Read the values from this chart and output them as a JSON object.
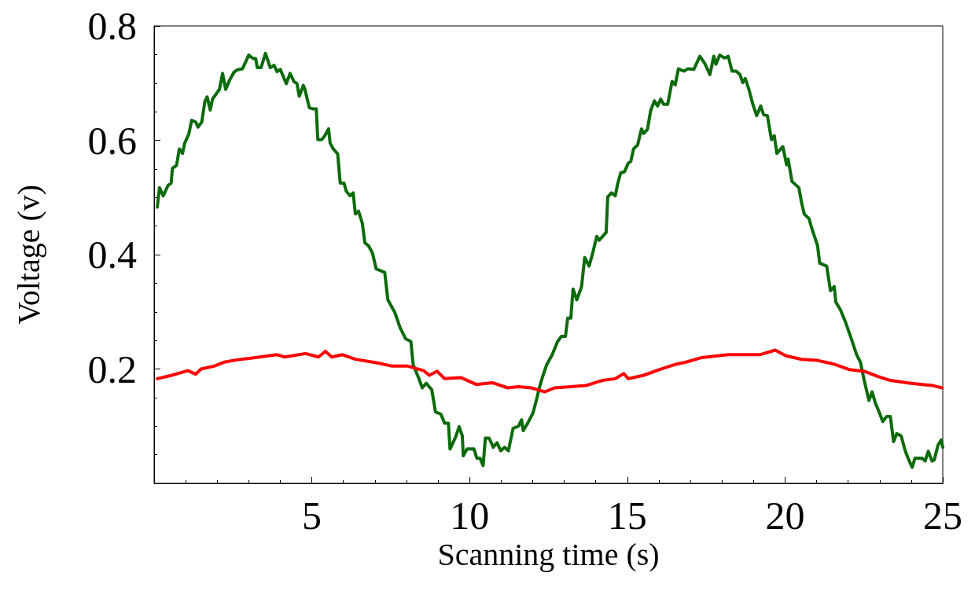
{
  "chart_data": {
    "type": "line",
    "xlabel": "Scanning time (s)",
    "ylabel": "Voltage (v)",
    "xlim": [
      0,
      25
    ],
    "xticks": [
      5,
      10,
      15,
      20,
      25
    ],
    "ylim": [
      0,
      0.8
    ],
    "yticks": [
      0.2,
      0.4,
      0.6,
      0.8
    ],
    "grid": false,
    "marker": "none",
    "line_style": "solid",
    "series": [
      {
        "color": "#0b6b0b",
        "x": [
          0.1,
          0.17,
          0.29,
          0.44,
          0.54,
          0.58,
          0.71,
          0.8,
          0.9,
          0.97,
          1.1,
          1.19,
          1.32,
          1.39,
          1.51,
          1.61,
          1.68,
          1.78,
          1.85,
          2.07,
          2.17,
          2.27,
          2.39,
          2.53,
          2.63,
          2.8,
          2.9,
          3.0,
          3.14,
          3.22,
          3.27,
          3.39,
          3.53,
          3.68,
          3.8,
          3.9,
          4.0,
          4.19,
          4.31,
          4.43,
          4.53,
          4.6,
          4.73,
          4.78,
          4.92,
          5.02,
          5.14,
          5.19,
          5.31,
          5.41,
          5.53,
          5.58,
          5.68,
          5.82,
          5.9,
          6.02,
          6.09,
          6.21,
          6.31,
          6.38,
          6.48,
          6.6,
          6.68,
          6.8,
          6.92,
          7.04,
          7.31,
          7.41,
          7.63,
          7.8,
          7.97,
          8.14,
          8.21,
          8.38,
          8.5,
          8.63,
          8.8,
          8.92,
          9.09,
          9.21,
          9.33,
          9.38,
          9.55,
          9.67,
          9.77,
          9.8,
          9.92,
          10.14,
          10.23,
          10.33,
          10.43,
          10.5,
          10.62,
          10.75,
          10.87,
          10.99,
          11.11,
          11.23,
          11.38,
          11.55,
          11.65,
          11.7,
          11.84,
          12.01,
          12.13,
          12.23,
          12.33,
          12.45,
          12.62,
          12.79,
          12.91,
          13.04,
          13.11,
          13.21,
          13.28,
          13.4,
          13.55,
          13.65,
          13.79,
          13.91,
          14.03,
          14.11,
          14.33,
          14.38,
          14.5,
          14.62,
          14.69,
          14.79,
          14.91,
          15.03,
          15.11,
          15.2,
          15.33,
          15.45,
          15.52,
          15.64,
          15.74,
          15.86,
          15.96,
          16.06,
          16.15,
          16.28,
          16.42,
          16.52,
          16.62,
          16.79,
          16.93,
          17.11,
          17.3,
          17.45,
          17.62,
          17.74,
          17.81,
          17.93,
          18.08,
          18.2,
          18.32,
          18.45,
          18.57,
          18.66,
          18.74,
          18.86,
          18.98,
          19.1,
          19.23,
          19.32,
          19.44,
          19.57,
          19.66,
          19.74,
          19.93,
          20.05,
          20.1,
          20.22,
          20.44,
          20.52,
          20.61,
          20.76,
          20.86,
          21.03,
          21.1,
          21.32,
          21.44,
          21.56,
          21.61,
          21.76,
          21.93,
          22.1,
          22.27,
          22.39,
          22.51,
          22.66,
          22.76,
          22.86,
          22.98,
          23.1,
          23.22,
          23.34,
          23.44,
          23.54,
          23.68,
          23.81,
          23.9,
          24.03,
          24.12,
          24.34,
          24.44,
          24.54,
          24.66,
          24.73,
          24.85,
          24.95,
          25.0
        ],
        "values": [
          0.483,
          0.517,
          0.503,
          0.521,
          0.525,
          0.551,
          0.556,
          0.585,
          0.577,
          0.595,
          0.611,
          0.635,
          0.632,
          0.623,
          0.632,
          0.668,
          0.676,
          0.653,
          0.672,
          0.689,
          0.717,
          0.689,
          0.705,
          0.719,
          0.723,
          0.725,
          0.737,
          0.749,
          0.743,
          0.743,
          0.727,
          0.727,
          0.752,
          0.727,
          0.731,
          0.72,
          0.724,
          0.699,
          0.717,
          0.703,
          0.699,
          0.677,
          0.696,
          0.689,
          0.657,
          0.655,
          0.655,
          0.601,
          0.601,
          0.608,
          0.62,
          0.595,
          0.585,
          0.576,
          0.525,
          0.525,
          0.511,
          0.503,
          0.508,
          0.471,
          0.476,
          0.455,
          0.421,
          0.415,
          0.403,
          0.375,
          0.369,
          0.321,
          0.299,
          0.272,
          0.253,
          0.248,
          0.208,
          0.185,
          0.167,
          0.175,
          0.164,
          0.125,
          0.121,
          0.105,
          0.105,
          0.06,
          0.08,
          0.099,
          0.083,
          0.048,
          0.06,
          0.06,
          0.044,
          0.044,
          0.031,
          0.079,
          0.079,
          0.063,
          0.071,
          0.057,
          0.063,
          0.057,
          0.096,
          0.1,
          0.111,
          0.092,
          0.105,
          0.123,
          0.148,
          0.171,
          0.189,
          0.208,
          0.225,
          0.248,
          0.257,
          0.257,
          0.289,
          0.289,
          0.34,
          0.321,
          0.344,
          0.395,
          0.38,
          0.404,
          0.432,
          0.425,
          0.439,
          0.501,
          0.508,
          0.503,
          0.523,
          0.543,
          0.545,
          0.56,
          0.563,
          0.585,
          0.592,
          0.62,
          0.612,
          0.619,
          0.652,
          0.669,
          0.66,
          0.672,
          0.663,
          0.663,
          0.703,
          0.697,
          0.725,
          0.721,
          0.725,
          0.724,
          0.747,
          0.735,
          0.715,
          0.747,
          0.733,
          0.749,
          0.744,
          0.747,
          0.721,
          0.721,
          0.715,
          0.701,
          0.708,
          0.688,
          0.663,
          0.643,
          0.66,
          0.645,
          0.643,
          0.601,
          0.608,
          0.577,
          0.589,
          0.557,
          0.567,
          0.528,
          0.517,
          0.492,
          0.471,
          0.463,
          0.444,
          0.416,
          0.385,
          0.38,
          0.337,
          0.344,
          0.317,
          0.303,
          0.28,
          0.253,
          0.225,
          0.212,
          0.18,
          0.145,
          0.16,
          0.141,
          0.125,
          0.108,
          0.117,
          0.117,
          0.073,
          0.087,
          0.083,
          0.057,
          0.044,
          0.028,
          0.044,
          0.044,
          0.039,
          0.056,
          0.039,
          0.041,
          0.067,
          0.076,
          0.063
        ]
      },
      {
        "color": "#ff0000",
        "x": [
          0.1,
          0.56,
          1.07,
          1.32,
          1.49,
          1.9,
          2.22,
          2.63,
          3.07,
          3.9,
          4.14,
          4.8,
          5.21,
          5.43,
          5.63,
          5.97,
          6.38,
          7.04,
          7.55,
          8.04,
          8.55,
          8.72,
          8.97,
          9.21,
          9.72,
          10.21,
          10.72,
          11.21,
          11.55,
          11.96,
          12.38,
          12.7,
          13.21,
          13.69,
          14.21,
          14.62,
          14.89,
          15.03,
          15.52,
          16.03,
          16.52,
          16.86,
          17.37,
          17.86,
          18.2,
          18.69,
          19.2,
          19.69,
          20.03,
          20.52,
          21.03,
          21.52,
          22.03,
          22.51,
          22.93,
          23.34,
          23.85,
          24.34,
          24.68,
          24.98
        ],
        "values": [
          0.183,
          0.189,
          0.197,
          0.191,
          0.2,
          0.205,
          0.212,
          0.216,
          0.219,
          0.225,
          0.221,
          0.227,
          0.221,
          0.231,
          0.221,
          0.225,
          0.217,
          0.211,
          0.205,
          0.205,
          0.197,
          0.189,
          0.196,
          0.183,
          0.185,
          0.173,
          0.176,
          0.167,
          0.169,
          0.167,
          0.16,
          0.167,
          0.169,
          0.171,
          0.18,
          0.183,
          0.192,
          0.183,
          0.189,
          0.199,
          0.208,
          0.212,
          0.22,
          0.223,
          0.225,
          0.225,
          0.225,
          0.233,
          0.223,
          0.217,
          0.215,
          0.209,
          0.199,
          0.196,
          0.187,
          0.18,
          0.176,
          0.173,
          0.171,
          0.167
        ]
      }
    ]
  }
}
